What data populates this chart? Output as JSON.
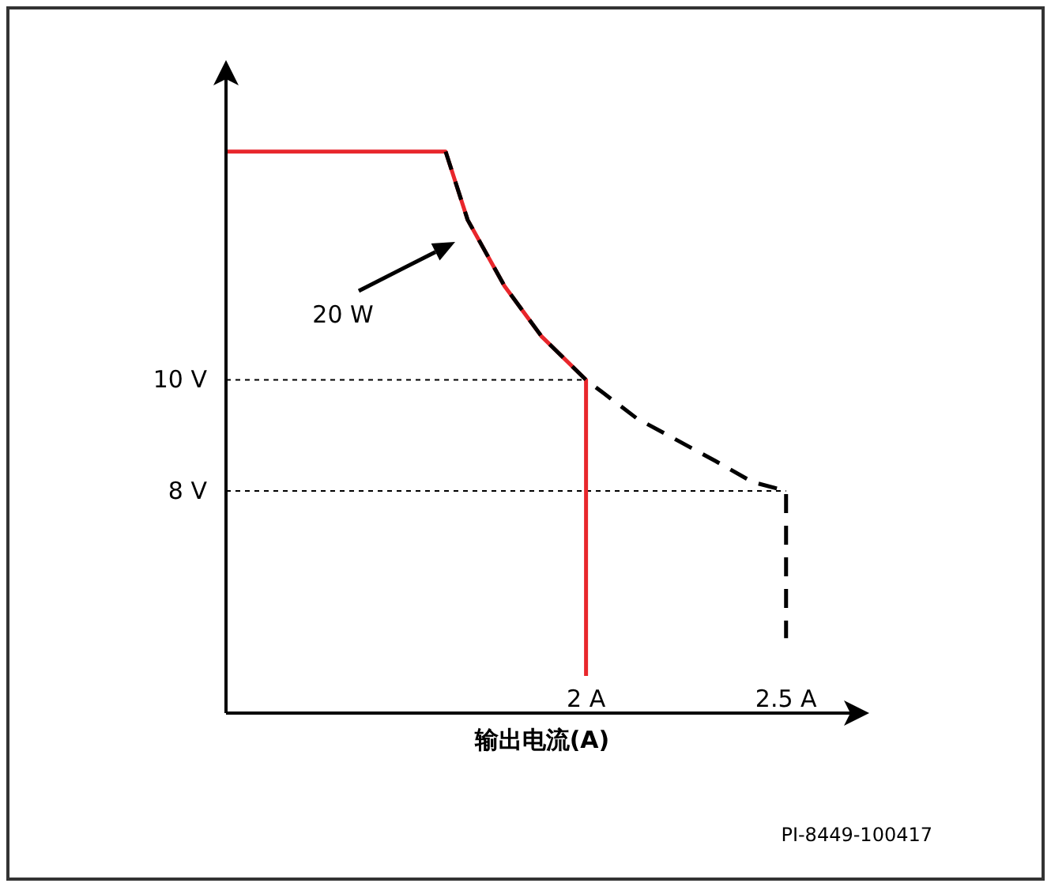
{
  "chart_data": {
    "type": "line",
    "xlabel": "**输出电流(A)**",
    "xlim": [
      1.1,
      2.7
    ],
    "ylim": [
      4,
      15.7
    ],
    "xticks": [
      {
        "value": 2,
        "label": "2 A"
      },
      {
        "value": 2.5,
        "label": "2.5 A"
      }
    ],
    "yticks": [
      {
        "value": 8,
        "label": "8 V"
      },
      {
        "value": 10,
        "label": "10 V"
      }
    ],
    "tick_labels": "xy",
    "series": [
      {
        "color": "#e8262b",
        "line_style": "solid",
        "x": [
          1.1,
          1.649,
          1.704,
          1.796,
          1.889,
          2,
          2
        ],
        "values": [
          14.11,
          14.11,
          12.88,
          11.69,
          10.78,
          10,
          4.67
        ]
      },
      {
        "color": "#000000",
        "line_style": "dashed",
        "x": [
          1.649,
          1.704,
          1.796,
          1.889,
          2,
          2.126,
          2.323,
          2.416,
          2.5,
          2.5
        ],
        "values": [
          14.11,
          12.88,
          11.69,
          10.78,
          10,
          9.31,
          8.54,
          8.16,
          8,
          5.35
        ]
      }
    ],
    "ref_lines": [
      {
        "axis": "y",
        "value": 10,
        "line_style": "dotted",
        "color": "#000000"
      },
      {
        "axis": "y",
        "value": 8,
        "line_style": "dotted",
        "color": "#000000"
      }
    ],
    "annotations": [
      "20 W",
      "PI-8449-100417"
    ]
  }
}
